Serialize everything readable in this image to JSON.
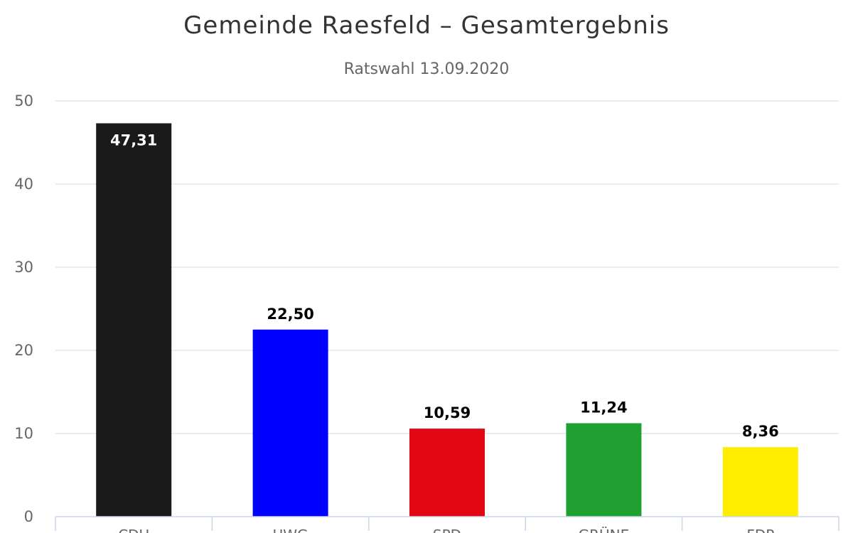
{
  "chart_data": {
    "type": "bar",
    "title": "Gemeinde Raesfeld – Gesamtergebnis",
    "subtitle": "Ratswahl 13.09.2020",
    "categories": [
      "CDU",
      "UWG",
      "SPD",
      "GRÜNE",
      "FDP"
    ],
    "values": [
      47.31,
      22.5,
      10.59,
      11.24,
      8.36
    ],
    "value_labels": [
      "47,31",
      "22,50",
      "10,59",
      "11,24",
      "8,36"
    ],
    "colors": [
      "#1a1a1a",
      "#0000ff",
      "#e30613",
      "#21a032",
      "#ffed00"
    ],
    "ylim": [
      0,
      50
    ],
    "yticks": [
      0,
      10,
      20,
      30,
      40,
      50
    ],
    "grid": true,
    "legend": "none"
  }
}
